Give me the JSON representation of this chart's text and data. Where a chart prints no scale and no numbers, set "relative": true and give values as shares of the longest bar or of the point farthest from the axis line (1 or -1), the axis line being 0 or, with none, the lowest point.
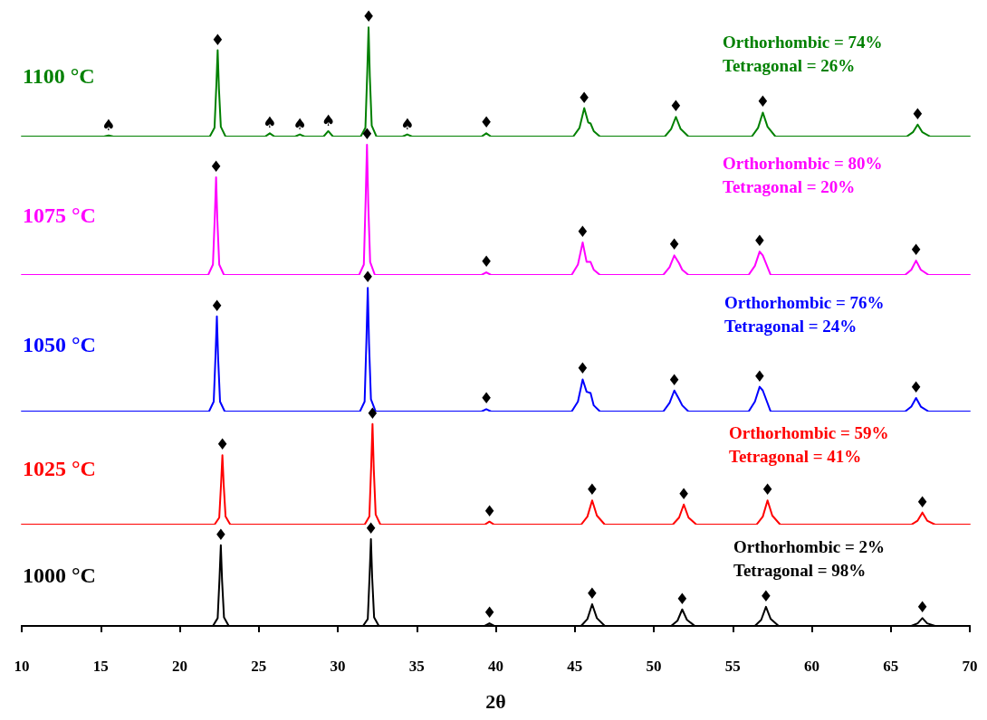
{
  "chart_data": [
    {
      "type": "line",
      "relative": true,
      "xlim": [
        10,
        70
      ],
      "tick_labels": false,
      "series": [
        {
          "name": "1100 °C",
          "color": "#008000",
          "x": [
            10,
            15.2,
            15.5,
            15.8,
            21.9,
            22.2,
            22.32,
            22.4,
            22.48,
            22.6,
            22.9,
            25.4,
            25.7,
            26.0,
            27.3,
            27.6,
            27.9,
            29.1,
            29.4,
            29.7,
            31.45,
            31.75,
            31.87,
            31.95,
            32.03,
            32.15,
            32.45,
            34.1,
            34.4,
            34.7,
            39.1,
            39.4,
            39.7,
            44.9,
            45.3,
            45.6,
            45.85,
            46.0,
            46.2,
            46.6,
            50.7,
            51.1,
            51.4,
            51.7,
            52.2,
            56.2,
            56.6,
            56.9,
            57.2,
            57.7,
            66.0,
            66.4,
            66.7,
            67.0,
            67.5,
            70
          ],
          "values": [
            0,
            0,
            0.01,
            0,
            0,
            0.08,
            0.48,
            0.79,
            0.44,
            0.09,
            0,
            0,
            0.03,
            0,
            0,
            0.02,
            0,
            0,
            0.05,
            0,
            0,
            0.08,
            0.6,
            1,
            0.55,
            0.1,
            0,
            0,
            0.02,
            0,
            0,
            0.03,
            0,
            0,
            0.08,
            0.26,
            0.13,
            0.12,
            0.05,
            0,
            0,
            0.07,
            0.18,
            0.07,
            0,
            0,
            0.08,
            0.22,
            0.09,
            0,
            0,
            0.04,
            0.11,
            0.04,
            0,
            0
          ]
        }
      ],
      "annotations": [
        "Orthorhombic = 74%",
        "Tetragonal = 26%",
        "♠",
        "♦",
        "♠",
        "♠",
        "♠",
        "♦",
        "♠",
        "♦",
        "♦",
        "♦",
        "♦",
        "♦"
      ]
    },
    {
      "type": "line",
      "relative": true,
      "xlim": [
        10,
        70
      ],
      "tick_labels": false,
      "series": [
        {
          "name": "1075 °C",
          "color": "#ff00ff",
          "x": [
            10,
            21.8,
            22.1,
            22.22,
            22.3,
            22.38,
            22.5,
            22.8,
            31.35,
            31.65,
            31.77,
            31.85,
            31.93,
            32.05,
            32.35,
            39.1,
            39.4,
            39.7,
            44.8,
            45.2,
            45.5,
            45.75,
            46.0,
            46.2,
            46.6,
            50.6,
            51.0,
            51.3,
            51.6,
            51.8,
            52.2,
            56.0,
            56.4,
            56.7,
            56.9,
            57.4,
            65.9,
            66.3,
            66.6,
            66.9,
            67.4,
            70
          ],
          "values": [
            0,
            0,
            0.08,
            0.45,
            0.75,
            0.42,
            0.08,
            0,
            0,
            0.08,
            0.6,
            1,
            0.55,
            0.1,
            0,
            0,
            0.02,
            0,
            0,
            0.08,
            0.25,
            0.1,
            0.1,
            0.04,
            0,
            0,
            0.06,
            0.15,
            0.09,
            0.04,
            0,
            0,
            0.07,
            0.18,
            0.15,
            0,
            0,
            0.04,
            0.11,
            0.04,
            0,
            0
          ]
        }
      ],
      "annotations": [
        "Orthorhombic = 80%",
        "Tetragonal = 20%",
        "♦",
        "♦",
        "♦",
        "♦",
        "♦",
        "♦",
        "♦"
      ]
    },
    {
      "type": "line",
      "relative": true,
      "xlim": [
        10,
        70
      ],
      "tick_labels": false,
      "series": [
        {
          "name": "1050 °C",
          "color": "#0000ff",
          "x": [
            10,
            21.85,
            22.15,
            22.27,
            22.35,
            22.43,
            22.55,
            22.85,
            31.4,
            31.7,
            31.82,
            31.9,
            31.98,
            32.1,
            32.4,
            39.1,
            39.4,
            39.7,
            44.8,
            45.2,
            45.5,
            45.75,
            46.0,
            46.2,
            46.6,
            50.6,
            51.0,
            51.3,
            51.6,
            51.8,
            52.2,
            56.0,
            56.4,
            56.7,
            56.9,
            57.4,
            65.9,
            66.3,
            66.6,
            66.9,
            67.4,
            70
          ],
          "values": [
            0,
            0,
            0.08,
            0.47,
            0.77,
            0.43,
            0.08,
            0,
            0,
            0.08,
            0.6,
            1,
            0.55,
            0.1,
            0,
            0,
            0.02,
            0,
            0,
            0.08,
            0.26,
            0.16,
            0.15,
            0.05,
            0,
            0,
            0.07,
            0.17,
            0.1,
            0.05,
            0,
            0,
            0.08,
            0.2,
            0.17,
            0,
            0,
            0.04,
            0.11,
            0.04,
            0,
            0
          ]
        }
      ],
      "annotations": [
        "Orthorhombic = 76%",
        "Tetragonal = 24%",
        "♦",
        "♦",
        "♦",
        "♦",
        "♦",
        "♦",
        "♦"
      ]
    },
    {
      "type": "line",
      "relative": true,
      "xlim": [
        10,
        70
      ],
      "tick_labels": false,
      "series": [
        {
          "name": "1025 °C",
          "color": "#ff0000",
          "x": [
            10,
            22.2,
            22.5,
            22.62,
            22.7,
            22.78,
            22.9,
            23.2,
            31.7,
            32.0,
            32.12,
            32.2,
            32.28,
            32.4,
            32.7,
            39.3,
            39.6,
            39.9,
            45.4,
            45.8,
            46.1,
            46.4,
            46.9,
            51.2,
            51.6,
            51.9,
            52.2,
            52.7,
            56.5,
            56.9,
            57.2,
            57.5,
            58.0,
            66.3,
            66.7,
            67.0,
            67.3,
            67.8,
            70
          ],
          "values": [
            0,
            0,
            0.07,
            0.42,
            0.69,
            0.4,
            0.08,
            0,
            0,
            0.08,
            0.6,
            1,
            0.55,
            0.1,
            0,
            0,
            0.03,
            0,
            0,
            0.08,
            0.24,
            0.09,
            0,
            0,
            0.07,
            0.2,
            0.07,
            0,
            0,
            0.08,
            0.24,
            0.09,
            0,
            0,
            0.04,
            0.12,
            0.04,
            0,
            0
          ]
        }
      ],
      "annotations": [
        "Orthorhombic = 59%",
        "Tetragonal = 41%",
        "♦",
        "♦",
        "♦",
        "♦",
        "♦",
        "♦",
        "♦"
      ]
    },
    {
      "type": "line",
      "relative": true,
      "xlim": [
        10,
        70
      ],
      "xticks": [
        10,
        15,
        20,
        25,
        30,
        35,
        40,
        45,
        50,
        55,
        60,
        65,
        70
      ],
      "xlabel": "2θ",
      "tick_labels": "x",
      "series": [
        {
          "name": "1000 °C",
          "color": "#000000",
          "x": [
            10,
            22.1,
            22.4,
            22.52,
            22.6,
            22.68,
            22.8,
            23.1,
            31.6,
            31.9,
            32.02,
            32.1,
            32.18,
            32.3,
            32.6,
            39.3,
            39.6,
            39.9,
            45.4,
            45.8,
            46.1,
            46.4,
            46.9,
            51.1,
            51.5,
            51.8,
            52.1,
            52.6,
            56.4,
            56.8,
            57.1,
            57.4,
            57.9,
            66.3,
            66.7,
            67.0,
            67.3,
            67.8,
            70
          ],
          "values": [
            0,
            0,
            0.09,
            0.56,
            0.93,
            0.52,
            0.1,
            0,
            0,
            0.08,
            0.6,
            1,
            0.55,
            0.1,
            0,
            0,
            0.03,
            0,
            0,
            0.08,
            0.25,
            0.09,
            0,
            0,
            0.06,
            0.19,
            0.07,
            0,
            0,
            0.07,
            0.22,
            0.08,
            0,
            0,
            0.03,
            0.09,
            0.03,
            0,
            0
          ]
        }
      ],
      "annotations": [
        "Orthorhombic = 2%",
        "Tetragonal = 98%",
        "♦",
        "♦",
        "♦",
        "♦",
        "♦",
        "♦",
        "♦"
      ]
    }
  ]
}
